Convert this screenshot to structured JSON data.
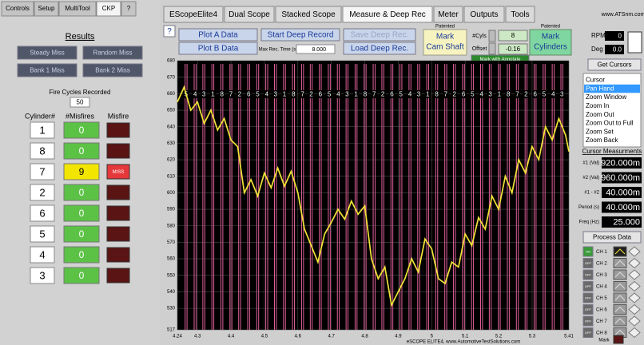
{
  "left_tabs": [
    "Controls",
    "Setup",
    "MultiTool",
    "CKP",
    "?"
  ],
  "results": {
    "title": "Results",
    "buttons": [
      "Steady Miss",
      "Random Miss",
      "Bank 1 Miss",
      "Bank 2 Miss"
    ],
    "fire_cycles_label": "Fire Cycles Recorded",
    "fire_cycles": 50,
    "headers": [
      "Cylinder#",
      "#Misfires",
      "Misfire"
    ],
    "rows": [
      {
        "cylinder": 1,
        "misfires": 0
      },
      {
        "cylinder": 8,
        "misfires": 0
      },
      {
        "cylinder": 7,
        "misfires": 9,
        "status": "MISS"
      },
      {
        "cylinder": 2,
        "misfires": 0
      },
      {
        "cylinder": 6,
        "misfires": 0
      },
      {
        "cylinder": 5,
        "misfires": 0
      },
      {
        "cylinder": 4,
        "misfires": 0
      },
      {
        "cylinder": 3,
        "misfires": 0
      }
    ]
  },
  "main_tabs": [
    "EScopeElite4",
    "Dual Scope",
    "Stacked Scope",
    "Measure & Deep Rec",
    "Meter",
    "Outputs",
    "Tools"
  ],
  "site": "www.ATSnm.com",
  "toolbar": {
    "help": "?",
    "plot_a": "Plot A Data",
    "plot_b": "Plot B Data",
    "start_deep": "Start Deep Record",
    "save_deep": "Save Deep Rec.",
    "load_deep": "Load Deep Rec.",
    "max_rec_label": "Max Rec. Time (s)",
    "max_rec": "8.000",
    "patented": "Patented",
    "mark_cam": [
      "Mark",
      "Cam Shaft"
    ],
    "cyls_label": "#Cyls",
    "cyls": 8,
    "offset_label": "Offset",
    "offset": -0.16,
    "annotate": "Mark with Annotate",
    "mark_cyl": [
      "Mark",
      "Cylinders"
    ],
    "rpm_label": "RPM",
    "rpm": 0,
    "deg_label": "Deg",
    "deg": "0.0"
  },
  "side": {
    "get_cursors": "Get Cursors",
    "tools": [
      "Cursor",
      "Pan Hand",
      "Zoom Window",
      "Zoom In",
      "Zoom Out",
      "Zoom Out to Full",
      "Zoom Set",
      "Zoom Back"
    ],
    "selected_tool": 1,
    "cursor_title": "Cursor Measurments",
    "measurements": [
      {
        "label": "#1 (Val)",
        "value": "920.000m"
      },
      {
        "label": "#2 (Val)",
        "value": "960.000m"
      },
      {
        "label": "#1 - #2",
        "value": "40.000m"
      },
      {
        "label": "Period (s)",
        "value": "40.000m"
      },
      {
        "label": "Freq (Hz)",
        "value": "25.000"
      }
    ],
    "process": "Process Data",
    "channels": [
      {
        "state": "ON",
        "name": "CH 1"
      },
      {
        "state": "OFF",
        "name": "CH 2"
      },
      {
        "state": "OFF",
        "name": "CH 3"
      },
      {
        "state": "OFF",
        "name": "CH 4"
      },
      {
        "state": "OFF",
        "name": "CH 5"
      },
      {
        "state": "OFF",
        "name": "CH 6"
      },
      {
        "state": "OFF",
        "name": "CH 7"
      },
      {
        "state": "OFF",
        "name": "CH 8"
      }
    ],
    "mark": "Mark"
  },
  "chart_data": {
    "type": "line",
    "color": "#f2e338",
    "grid": true,
    "x": [
      4.24,
      4.26,
      4.28,
      4.3,
      4.32,
      4.34,
      4.36,
      4.38,
      4.4,
      4.42,
      4.44,
      4.46,
      4.48,
      4.5,
      4.52,
      4.54,
      4.56,
      4.58,
      4.6,
      4.62,
      4.64,
      4.66,
      4.68,
      4.7,
      4.72,
      4.74,
      4.76,
      4.78,
      4.8,
      4.82,
      4.84,
      4.86,
      4.88,
      4.9,
      4.92,
      4.94,
      4.96,
      4.98,
      5.0,
      5.02,
      5.04,
      5.06,
      5.08,
      5.1,
      5.12,
      5.14,
      5.16,
      5.18,
      5.2,
      5.22,
      5.24,
      5.26,
      5.28,
      5.3,
      5.32,
      5.34,
      5.36,
      5.38,
      5.4,
      5.41
    ],
    "values": [
      655,
      664,
      650,
      655,
      642,
      650,
      638,
      645,
      632,
      628,
      600,
      608,
      598,
      612,
      603,
      615,
      604,
      613,
      600,
      578,
      568,
      558,
      575,
      582,
      590,
      584,
      595,
      587,
      592,
      560,
      548,
      555,
      532,
      540,
      548,
      560,
      552,
      572,
      566,
      548,
      545,
      558,
      555,
      575,
      568,
      585,
      578,
      598,
      590,
      610,
      600,
      620,
      612,
      628,
      620,
      640,
      632,
      645,
      635,
      625
    ],
    "xlim": [
      4.24,
      5.41
    ],
    "xticks": [
      4.24,
      4.3,
      4.4,
      4.5,
      4.6,
      4.7,
      4.8,
      4.9,
      5,
      5.1,
      5.2,
      5.3,
      5.41
    ],
    "ylim": [
      517,
      680
    ],
    "yticks": [
      517,
      530,
      540,
      550,
      560,
      570,
      580,
      590,
      600,
      610,
      620,
      630,
      640,
      650,
      660,
      670,
      680
    ],
    "cylinder_marks": {
      "color": "#e0609a",
      "x": [
        4.266,
        4.293,
        4.319,
        4.346,
        4.373,
        4.4,
        4.426,
        4.453,
        4.48,
        4.507,
        4.533,
        4.56,
        4.587,
        4.614,
        4.64,
        4.667,
        4.694,
        4.721,
        4.747,
        4.774,
        4.801,
        4.828,
        4.854,
        4.881,
        4.908,
        4.935,
        4.961,
        4.988,
        5.015,
        5.042,
        5.068,
        5.095,
        5.122,
        5.149,
        5.175,
        5.202,
        5.229,
        5.256,
        5.282,
        5.309,
        5.336,
        5.363,
        5.389
      ],
      "labels": [
        5,
        4,
        3,
        1,
        8,
        7,
        2,
        6,
        5,
        4,
        3,
        1,
        8,
        7,
        2,
        6,
        5,
        4,
        3,
        1,
        8,
        7,
        2,
        6,
        5,
        4,
        3,
        1,
        8,
        7,
        2,
        6,
        5,
        4,
        3,
        1,
        8,
        7,
        2,
        6,
        5,
        4,
        3
      ]
    },
    "footer": "eSCOPE ELITE4, www.AutomotiveTestSolutions.com"
  }
}
